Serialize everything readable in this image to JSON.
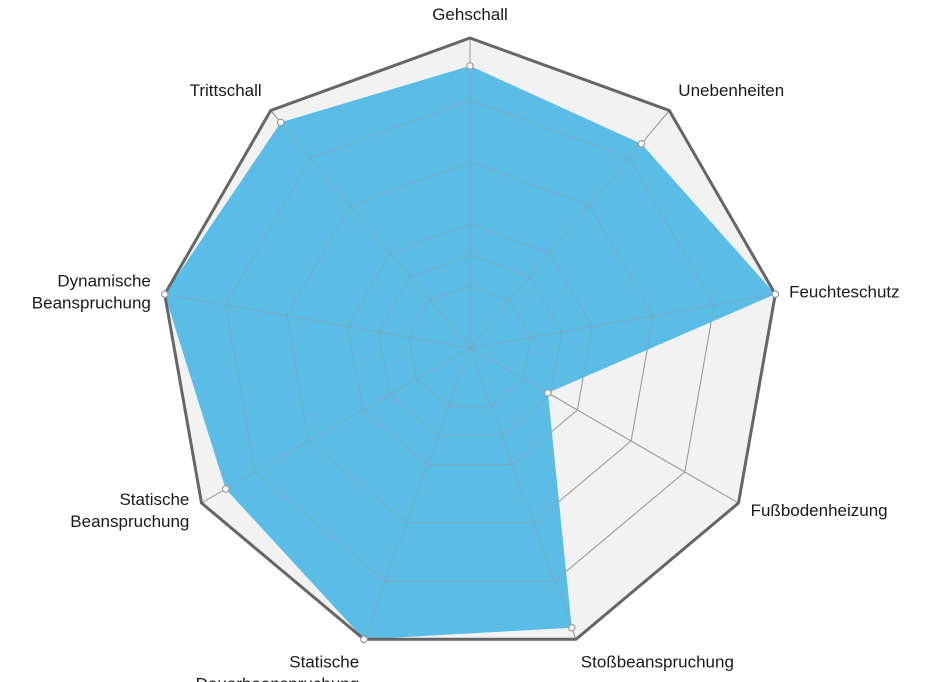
{
  "chart_data": {
    "type": "radar",
    "title": "",
    "axes": [
      {
        "label": [
          "Gehschall"
        ],
        "value": 0.91
      },
      {
        "label": [
          "Unebenheiten"
        ],
        "value": 0.86
      },
      {
        "label": [
          "Feuchteschutz"
        ],
        "value": 1.0
      },
      {
        "label": [
          "Fußbodenheizung"
        ],
        "value": 0.29
      },
      {
        "label": [
          "Stoßbeanspruchung"
        ],
        "value": 0.96
      },
      {
        "label": [
          "Statische",
          "Dauerbeanspruchung"
        ],
        "value": 1.0
      },
      {
        "label": [
          "Statische",
          "Beanspruchung"
        ],
        "value": 0.91
      },
      {
        "label": [
          "Dynamische",
          "Beanspruchung"
        ],
        "value": 1.0
      },
      {
        "label": [
          "Trittschall"
        ],
        "value": 0.95
      }
    ],
    "rlim": [
      0,
      1
    ],
    "grid_rings": [
      0.2,
      0.3,
      0.4,
      0.6,
      0.8,
      1.0
    ],
    "grid": true,
    "legend": "none",
    "colors": {
      "fill": "#5bbce6",
      "background": "#f2f2f2",
      "outer_border": "#666666",
      "grid_line": "#9a9a9a",
      "marker_fill": "#ffffff",
      "marker_stroke": "#9a9a9a"
    }
  }
}
